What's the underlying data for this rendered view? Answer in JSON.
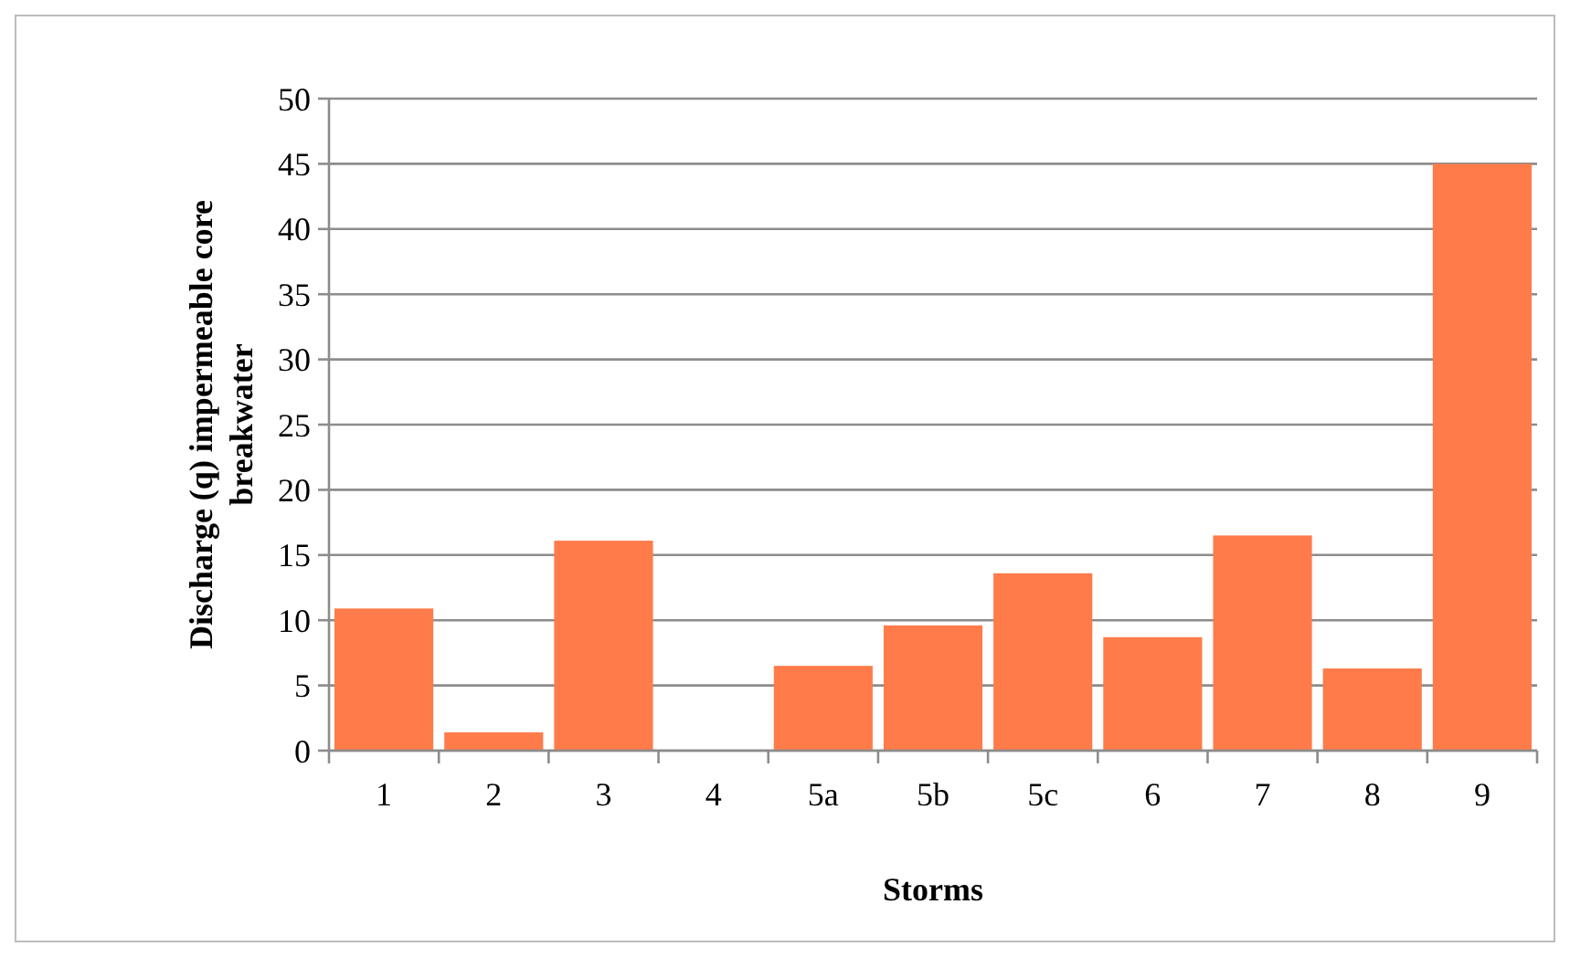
{
  "chart_data": {
    "type": "bar",
    "xlabel": "Storms",
    "ylabel": "Discharge (q) impermeable core breakwater",
    "categories": [
      "1",
      "2",
      "3",
      "4",
      "5a",
      "5b",
      "5c",
      "6",
      "7",
      "8",
      "9"
    ],
    "values": [
      10.9,
      1.4,
      16.1,
      0,
      6.5,
      9.6,
      13.6,
      8.7,
      16.5,
      6.3,
      45
    ],
    "color": "#ff7b4a",
    "ylim": [
      0,
      50
    ],
    "yticks": [
      0,
      5,
      10,
      15,
      20,
      25,
      30,
      35,
      40,
      45,
      50
    ],
    "grid": "y"
  }
}
